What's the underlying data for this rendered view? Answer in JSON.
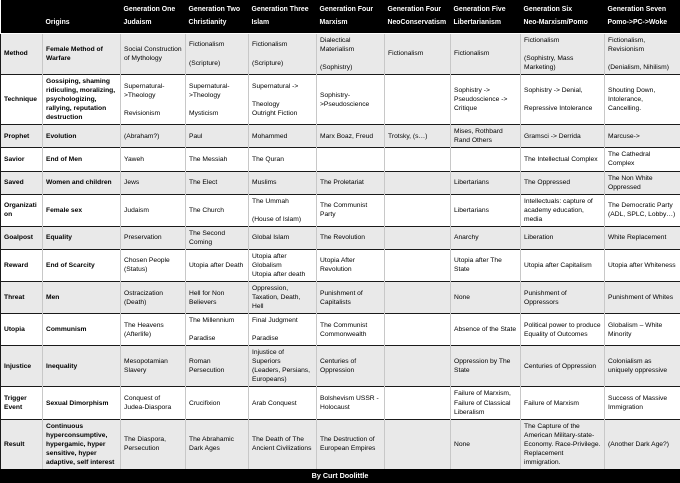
{
  "colors": {
    "header_bg": "#000000",
    "header_text": "#ffffff",
    "row_stripe": "#e9e9e9",
    "body_text": "#000000",
    "row_rule": "#1a1a1a"
  },
  "table": {
    "columns": [
      "",
      "\nOrigins",
      "Generation One\nJudaism",
      "Generation Two\nChristianity",
      "Generation Three\nIslam",
      "Generation Four\nMarxism",
      "Generation Four\nNeoConservatism",
      "Generation Five\nLibertarianism",
      "Generation Six\nNeo-Marxism/Pomo",
      "Generation Seven\nPomo->PC->Woke"
    ],
    "rows": [
      {
        "label": "Method",
        "cells": [
          "Female Method of Warfare",
          "Social Construction of Mythology",
          "Fictionalism\n\n(Scripture)",
          "Fictionalism\n\n(Scripture)",
          "Dialectical Materialism\n\n(Sophistry)",
          "Fictionalism",
          "Fictionalism",
          "Fictionalism\n\n(Sophistry, Mass Marketing)",
          "Fictionalism, Revisionism\n\n(Denialism, Nihilism)"
        ]
      },
      {
        "label": "Technique",
        "cells": [
          "Gossiping, shaming ridiculing, moralizing, psychologizing, rallying, reputation destruction",
          "Supernatural->Theology\n\nRevisionism",
          "Supernatural->Theology\n\nMysticism",
          "Supernatural ->\n\nTheology\nOutright Fiction",
          "Sophistry->Pseudoscience",
          "",
          "Sophistry -> Pseudoscience -> Critique",
          "Sophistry -> Denial,\n\nRepressive Intolerance",
          "Shouting Down, Intolerance, Cancelling."
        ]
      },
      {
        "label": "Prophet",
        "cells": [
          "Evolution",
          "(Abraham?)",
          "Paul",
          "Mohammed",
          "Marx Boaz, Freud",
          "Trotsky, (s…)",
          "Mises, Rothbard Rand Others",
          "Gramsci -> Derrida",
          "Marcuse->"
        ]
      },
      {
        "label": "Savior",
        "cells": [
          "End of Men",
          "Yaweh",
          "The Messiah",
          "The Quran",
          "",
          "",
          "",
          "The Intellectual Complex",
          "The Cathedral Complex"
        ]
      },
      {
        "label": "Saved",
        "cells": [
          "Women and children",
          "Jews",
          "The Elect",
          "Muslims",
          "The Proletariat",
          "",
          "Libertarians",
          "The Oppressed",
          "The Non White Oppressed"
        ]
      },
      {
        "label": "Organization",
        "cells": [
          "Female sex",
          "Judaism",
          "The Church",
          "The Ummah\n\n(House of Islam)",
          "The Communist Party",
          "",
          "Libertarians",
          "Intellectuals: capture of academy education, media",
          "The Democratic Party (ADL, SPLC, Lobby…)"
        ]
      },
      {
        "label": "Goalpost",
        "cells": [
          "Equality",
          "Preservation",
          "The Second Coming",
          "Global Islam",
          "The Revolution",
          "",
          "Anarchy",
          "Liberation",
          "White Replacement"
        ]
      },
      {
        "label": "Reward",
        "cells": [
          "End of Scarcity",
          "Chosen People (Status)",
          "Utopia after Death",
          "Utopia after Globalism\nUtopia after death",
          "Utopia After Revolution",
          "",
          "Utopia after The State",
          "Utopia after Capitalism",
          "Utopia after Whiteness"
        ]
      },
      {
        "label": "Threat",
        "cells": [
          "Men",
          "Ostracization (Death)",
          "Hell for Non Believers",
          "Oppression, Taxation, Death, Hell",
          "Punishment of Capitalists",
          "",
          "None",
          "Punishment of Oppressors",
          "Punishment of Whites"
        ]
      },
      {
        "label": "Utopia",
        "cells": [
          "Communism",
          "The Heavens (Afterlife)",
          "The Millennium\n\nParadise",
          "Final Judgment\n\nParadise",
          "The Communist Commonwealth",
          "",
          "Absence of the State",
          "Political power to produce Equality of Outcomes",
          "Globalism – White Minority"
        ]
      },
      {
        "label": "Injustice",
        "cells": [
          "Inequality",
          "Mesopotamian Slavery",
          "Roman Persecution",
          "Injustice of Superiors\n(Leaders, Persians, Europeans)",
          "Centuries of Oppression",
          "",
          "Oppression by The State",
          "Centuries of Oppression",
          "Colonialism as uniquely oppressive"
        ]
      },
      {
        "label": "Trigger Event",
        "cells": [
          "Sexual Dimorphism",
          "Conquest of Judea-Diaspora",
          "Crucifixion",
          "Arab Conquest",
          "Bolshevism USSR - Holocaust",
          "",
          "Failure of Marxism, Failure of Classical Liberalism",
          "Failure of Marxism",
          "Success of Massive Immigration"
        ]
      },
      {
        "label": "Result",
        "cells": [
          "Continuous hyperconsumptive, hypergamic, hyper sensitive, hyper adaptive, self interest",
          "The Diaspora, Persecution",
          "The Abrahamic Dark Ages",
          "The Death of The Ancient Civilizations",
          "The Destruction of European Empires",
          "",
          "None",
          "The Capture of the American Military-state-Economy. Race-Privilege. Replacement immigration.",
          "(Another Dark Age?)"
        ]
      }
    ]
  },
  "footer": {
    "credit": "By Curt Doolittle"
  }
}
